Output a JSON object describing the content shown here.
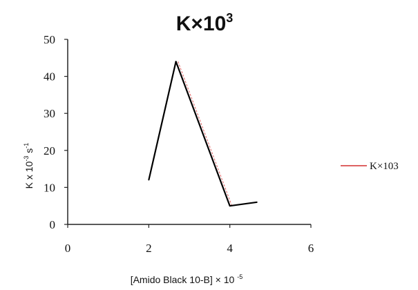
{
  "chart_data": {
    "type": "line",
    "title": "K×10",
    "title_superscript": "3",
    "xlabel": "[Amido Black 10-B] × 10",
    "xlabel_superscript": "-5",
    "ylabel": "K x 10",
    "ylabel_superscript": "-3",
    "ylabel_suffix": "s",
    "ylabel_suffix_superscript": "-1",
    "xlim": [
      0,
      6
    ],
    "ylim": [
      0,
      50
    ],
    "xticks": [
      0,
      2,
      4,
      6
    ],
    "yticks": [
      0,
      10,
      20,
      30,
      40,
      50
    ],
    "grid": false,
    "legend_position": "right",
    "series": [
      {
        "name": "K×103",
        "color": "#000000",
        "x": [
          2,
          2.67,
          4,
          4.67
        ],
        "y": [
          12,
          44,
          5,
          6
        ]
      }
    ],
    "legend_line_color": "#d32f2f",
    "shadow_line_color": "#d32f2f"
  }
}
